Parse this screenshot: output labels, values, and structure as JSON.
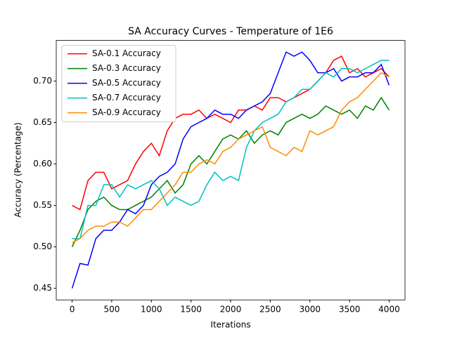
{
  "chart_data": {
    "type": "line",
    "title": "SA Accuracy Curves - Temperature of 1E6",
    "xlabel": "Iterations",
    "ylabel": "Accuracy (Percentage)",
    "x": [
      0,
      100,
      200,
      300,
      400,
      500,
      600,
      700,
      800,
      900,
      1000,
      1100,
      1200,
      1300,
      1400,
      1500,
      1600,
      1700,
      1800,
      1900,
      2000,
      2100,
      2200,
      2300,
      2400,
      2500,
      2600,
      2700,
      2800,
      2900,
      3000,
      3100,
      3200,
      3300,
      3400,
      3500,
      3600,
      3700,
      3800,
      3900,
      4000
    ],
    "series": [
      {
        "name": "SA-0.1 Accuracy",
        "color": "#ff0000",
        "values": [
          0.55,
          0.545,
          0.58,
          0.59,
          0.59,
          0.57,
          0.575,
          0.58,
          0.6,
          0.615,
          0.625,
          0.61,
          0.64,
          0.655,
          0.66,
          0.66,
          0.665,
          0.655,
          0.66,
          0.655,
          0.65,
          0.665,
          0.665,
          0.67,
          0.665,
          0.68,
          0.68,
          0.675,
          0.68,
          0.685,
          0.69,
          0.7,
          0.71,
          0.725,
          0.73,
          0.71,
          0.715,
          0.705,
          0.71,
          0.715,
          0.705
        ]
      },
      {
        "name": "SA-0.3 Accuracy",
        "color": "#008000",
        "values": [
          0.5,
          0.52,
          0.545,
          0.555,
          0.56,
          0.55,
          0.545,
          0.545,
          0.55,
          0.555,
          0.56,
          0.57,
          0.58,
          0.565,
          0.575,
          0.6,
          0.61,
          0.6,
          0.615,
          0.63,
          0.635,
          0.63,
          0.64,
          0.625,
          0.635,
          0.64,
          0.635,
          0.65,
          0.655,
          0.66,
          0.655,
          0.66,
          0.67,
          0.665,
          0.66,
          0.665,
          0.655,
          0.67,
          0.665,
          0.68,
          0.665
        ]
      },
      {
        "name": "SA-0.5 Accuracy",
        "color": "#0000ff",
        "values": [
          0.45,
          0.48,
          0.478,
          0.51,
          0.52,
          0.52,
          0.53,
          0.545,
          0.54,
          0.55,
          0.575,
          0.585,
          0.59,
          0.6,
          0.63,
          0.645,
          0.65,
          0.655,
          0.665,
          0.66,
          0.66,
          0.655,
          0.665,
          0.67,
          0.675,
          0.685,
          0.71,
          0.735,
          0.73,
          0.735,
          0.725,
          0.71,
          0.71,
          0.715,
          0.7,
          0.705,
          0.705,
          0.71,
          0.71,
          0.72,
          0.695
        ]
      },
      {
        "name": "SA-0.7 Accuracy",
        "color": "#00bfbf",
        "values": [
          0.51,
          0.51,
          0.55,
          0.55,
          0.575,
          0.575,
          0.56,
          0.575,
          0.57,
          0.575,
          0.58,
          0.57,
          0.55,
          0.56,
          0.555,
          0.55,
          0.555,
          0.575,
          0.59,
          0.58,
          0.585,
          0.58,
          0.62,
          0.64,
          0.65,
          0.655,
          0.66,
          0.675,
          0.68,
          0.69,
          0.69,
          0.7,
          0.71,
          0.705,
          0.715,
          0.715,
          0.71,
          0.715,
          0.72,
          0.725,
          0.725
        ]
      },
      {
        "name": "SA-0.9 Accuracy",
        "color": "#ff8c00",
        "values": [
          0.505,
          0.51,
          0.52,
          0.525,
          0.525,
          0.53,
          0.53,
          0.525,
          0.535,
          0.545,
          0.545,
          0.555,
          0.565,
          0.575,
          0.59,
          0.59,
          0.6,
          0.605,
          0.6,
          0.615,
          0.62,
          0.63,
          0.635,
          0.64,
          0.645,
          0.62,
          0.615,
          0.61,
          0.62,
          0.615,
          0.64,
          0.635,
          0.64,
          0.645,
          0.665,
          0.675,
          0.68,
          0.69,
          0.7,
          0.71,
          0.705
        ]
      }
    ],
    "xlim": [
      -200,
      4200
    ],
    "xticks": [
      0,
      500,
      1000,
      1500,
      2000,
      2500,
      3000,
      3500,
      4000
    ],
    "ylim": [
      0.436,
      0.749
    ],
    "yticks": [
      0.45,
      {
        "value": 0.5,
        "label": "0.50"
      },
      0.55,
      {
        "value": 0.6,
        "label": "0.60"
      },
      0.65,
      {
        "value": 0.7,
        "label": "0.70"
      }
    ],
    "legend": "upper left"
  }
}
